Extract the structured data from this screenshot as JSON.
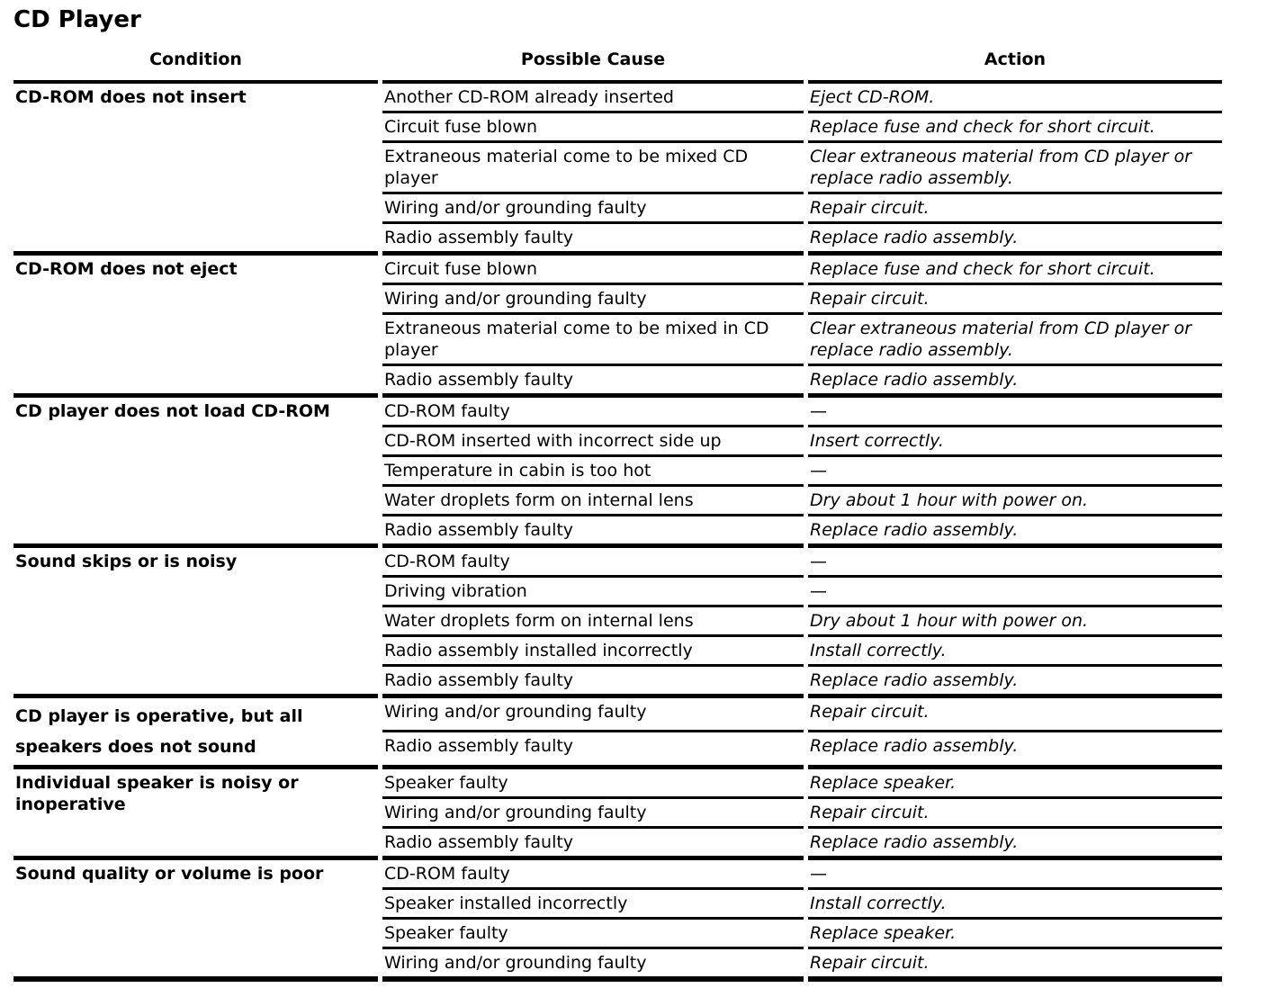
{
  "title": "CD Player",
  "colors": {
    "text": "#000000",
    "background": "#ffffff",
    "rule": "#000000"
  },
  "table": {
    "headers": [
      "Condition",
      "Possible Cause",
      "Action"
    ],
    "empty_action": "—",
    "sections": [
      {
        "condition": "CD-ROM does not insert",
        "rows": [
          {
            "cause": "Another CD-ROM already inserted",
            "action": "Eject CD-ROM."
          },
          {
            "cause": "Circuit fuse blown",
            "action": "Replace fuse and check for short circuit."
          },
          {
            "cause": "Extraneous material come to be mixed CD player",
            "action": "Clear extraneous material from CD player or replace radio assembly."
          },
          {
            "cause": "Wiring and/or grounding faulty",
            "action": "Repair circuit."
          },
          {
            "cause": "Radio assembly faulty",
            "action": "Replace radio assembly."
          }
        ]
      },
      {
        "condition": "CD-ROM does not eject",
        "rows": [
          {
            "cause": "Circuit fuse blown",
            "action": "Replace fuse and check for short circuit."
          },
          {
            "cause": "Wiring and/or grounding faulty",
            "action": "Repair circuit."
          },
          {
            "cause": "Extraneous material come to be mixed in CD player",
            "action": "Clear extraneous material from CD player or replace radio assembly."
          },
          {
            "cause": "Radio assembly faulty",
            "action": "Replace radio assembly."
          }
        ]
      },
      {
        "condition": "CD player does not load CD-ROM",
        "rows": [
          {
            "cause": "CD-ROM faulty",
            "action": "—"
          },
          {
            "cause": "CD-ROM inserted with incorrect side up",
            "action": "Insert correctly."
          },
          {
            "cause": "Temperature in cabin is too hot",
            "action": "—"
          },
          {
            "cause": "Water droplets form on internal lens",
            "action": "Dry about 1 hour with power on."
          },
          {
            "cause": "Radio assembly faulty",
            "action": "Replace radio assembly."
          }
        ]
      },
      {
        "condition": "Sound skips or is noisy",
        "rows": [
          {
            "cause": "CD-ROM faulty",
            "action": "—"
          },
          {
            "cause": "Driving vibration",
            "action": "—"
          },
          {
            "cause": "Water droplets form on internal lens",
            "action": "Dry about 1 hour with power on."
          },
          {
            "cause": "Radio assembly installed incorrectly",
            "action": "Install correctly."
          },
          {
            "cause": "Radio assembly faulty",
            "action": "Replace radio assembly."
          }
        ]
      },
      {
        "condition": "CD player is operative, but all speakers does not sound",
        "rows": [
          {
            "cause": "Wiring and/or grounding faulty",
            "action": "Repair circuit."
          },
          {
            "cause": "Radio assembly faulty",
            "action": "Replace radio assembly."
          }
        ]
      },
      {
        "condition": "Individual speaker is noisy or inoperative",
        "rows": [
          {
            "cause": "Speaker faulty",
            "action": "Replace speaker."
          },
          {
            "cause": "Wiring and/or grounding faulty",
            "action": "Repair circuit."
          },
          {
            "cause": "Radio assembly faulty",
            "action": "Replace radio assembly."
          }
        ]
      },
      {
        "condition": "Sound quality or volume is poor",
        "rows": [
          {
            "cause": "CD-ROM faulty",
            "action": "—"
          },
          {
            "cause": "Speaker installed incorrectly",
            "action": "Install correctly."
          },
          {
            "cause": "Speaker faulty",
            "action": "Replace speaker."
          },
          {
            "cause": "Wiring and/or grounding faulty",
            "action": "Repair circuit."
          }
        ]
      }
    ]
  }
}
